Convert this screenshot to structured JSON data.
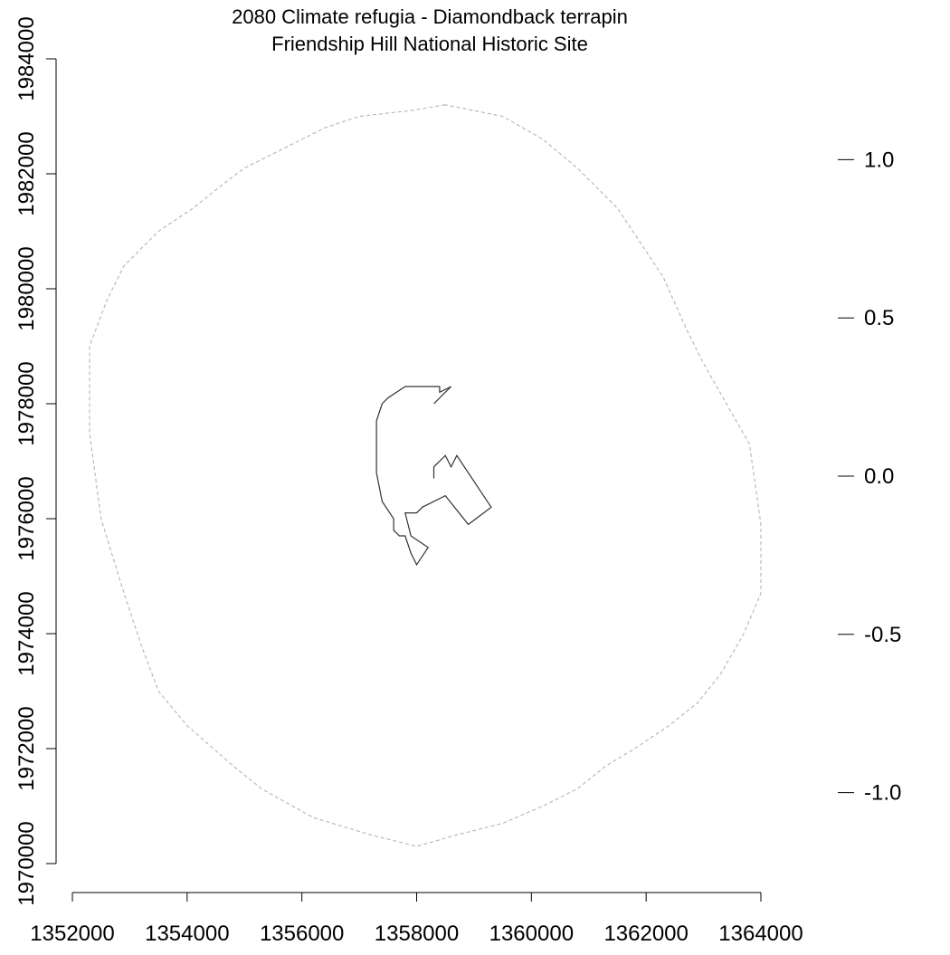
{
  "chart_data": {
    "type": "line",
    "title": "2080 Climate refugia - Diamondback terrapin",
    "subtitle": "Friendship Hill National Historic Site",
    "xlim": [
      1352000,
      1364000
    ],
    "ylim": [
      1970000,
      1984000
    ],
    "x_ticks": [
      1352000,
      1354000,
      1356000,
      1358000,
      1360000,
      1362000,
      1364000
    ],
    "y_ticks": [
      1970000,
      1972000,
      1974000,
      1976000,
      1978000,
      1980000,
      1982000,
      1984000
    ],
    "legend_scale": {
      "range": [
        -1.25,
        1.25
      ],
      "ticks": [
        1.0,
        0.5,
        0.0,
        -0.5,
        -1.0
      ],
      "tick_labels": [
        "1.0",
        "0.5",
        "0.0",
        "-0.5",
        "-1.0"
      ]
    },
    "series": [
      {
        "role": "buffer",
        "style": "dashed",
        "color": "#b4b4b4",
        "x": [
          1358500,
          1357900,
          1357000,
          1356400,
          1355800,
          1355000,
          1354600,
          1354100,
          1353500,
          1352900,
          1352600,
          1352300,
          1352300,
          1352500,
          1352900,
          1353200,
          1353500,
          1354000,
          1354800,
          1355300,
          1356200,
          1357200,
          1358000,
          1358700,
          1359500,
          1360200,
          1360800,
          1361300,
          1361800,
          1362400,
          1362900,
          1363300,
          1363700,
          1364000,
          1364000,
          1363800,
          1363400,
          1363000,
          1362700,
          1362300,
          1361500,
          1360800,
          1360200,
          1359500,
          1358500
        ],
        "y": [
          1983200,
          1983100,
          1983000,
          1982800,
          1982500,
          1982100,
          1981800,
          1981400,
          1981000,
          1980400,
          1979800,
          1979000,
          1977500,
          1976000,
          1974700,
          1973800,
          1973000,
          1972400,
          1971700,
          1971300,
          1970800,
          1970500,
          1970300,
          1970500,
          1970700,
          1971000,
          1971300,
          1971700,
          1972000,
          1972400,
          1972800,
          1973300,
          1974000,
          1974700,
          1975900,
          1977300,
          1978000,
          1978700,
          1979300,
          1980200,
          1981400,
          1982100,
          1982600,
          1983000,
          1983200
        ]
      },
      {
        "role": "park-boundary",
        "style": "solid",
        "color": "#333333",
        "x": [
          1358300,
          1358300,
          1358500,
          1358600,
          1358700,
          1358700,
          1359300,
          1358900,
          1358500,
          1358100,
          1358000,
          1357800,
          1357900,
          1358200,
          1358000,
          1357900,
          1357800,
          1357700,
          1357600,
          1357600,
          1357400,
          1357300,
          1357300,
          1357400,
          1357500,
          1357800,
          1358100,
          1358400,
          1358400,
          1358600,
          1358500,
          1358300
        ],
        "y": [
          1976700,
          1976900,
          1977100,
          1976900,
          1977100,
          1977100,
          1976200,
          1975900,
          1976400,
          1976200,
          1976100,
          1976100,
          1975700,
          1975500,
          1975200,
          1975400,
          1975700,
          1975700,
          1975800,
          1976000,
          1976300,
          1976800,
          1977700,
          1978000,
          1978100,
          1978300,
          1978300,
          1978300,
          1978200,
          1978300,
          1978200,
          1978000
        ]
      }
    ],
    "grid": false,
    "legend": "right"
  }
}
